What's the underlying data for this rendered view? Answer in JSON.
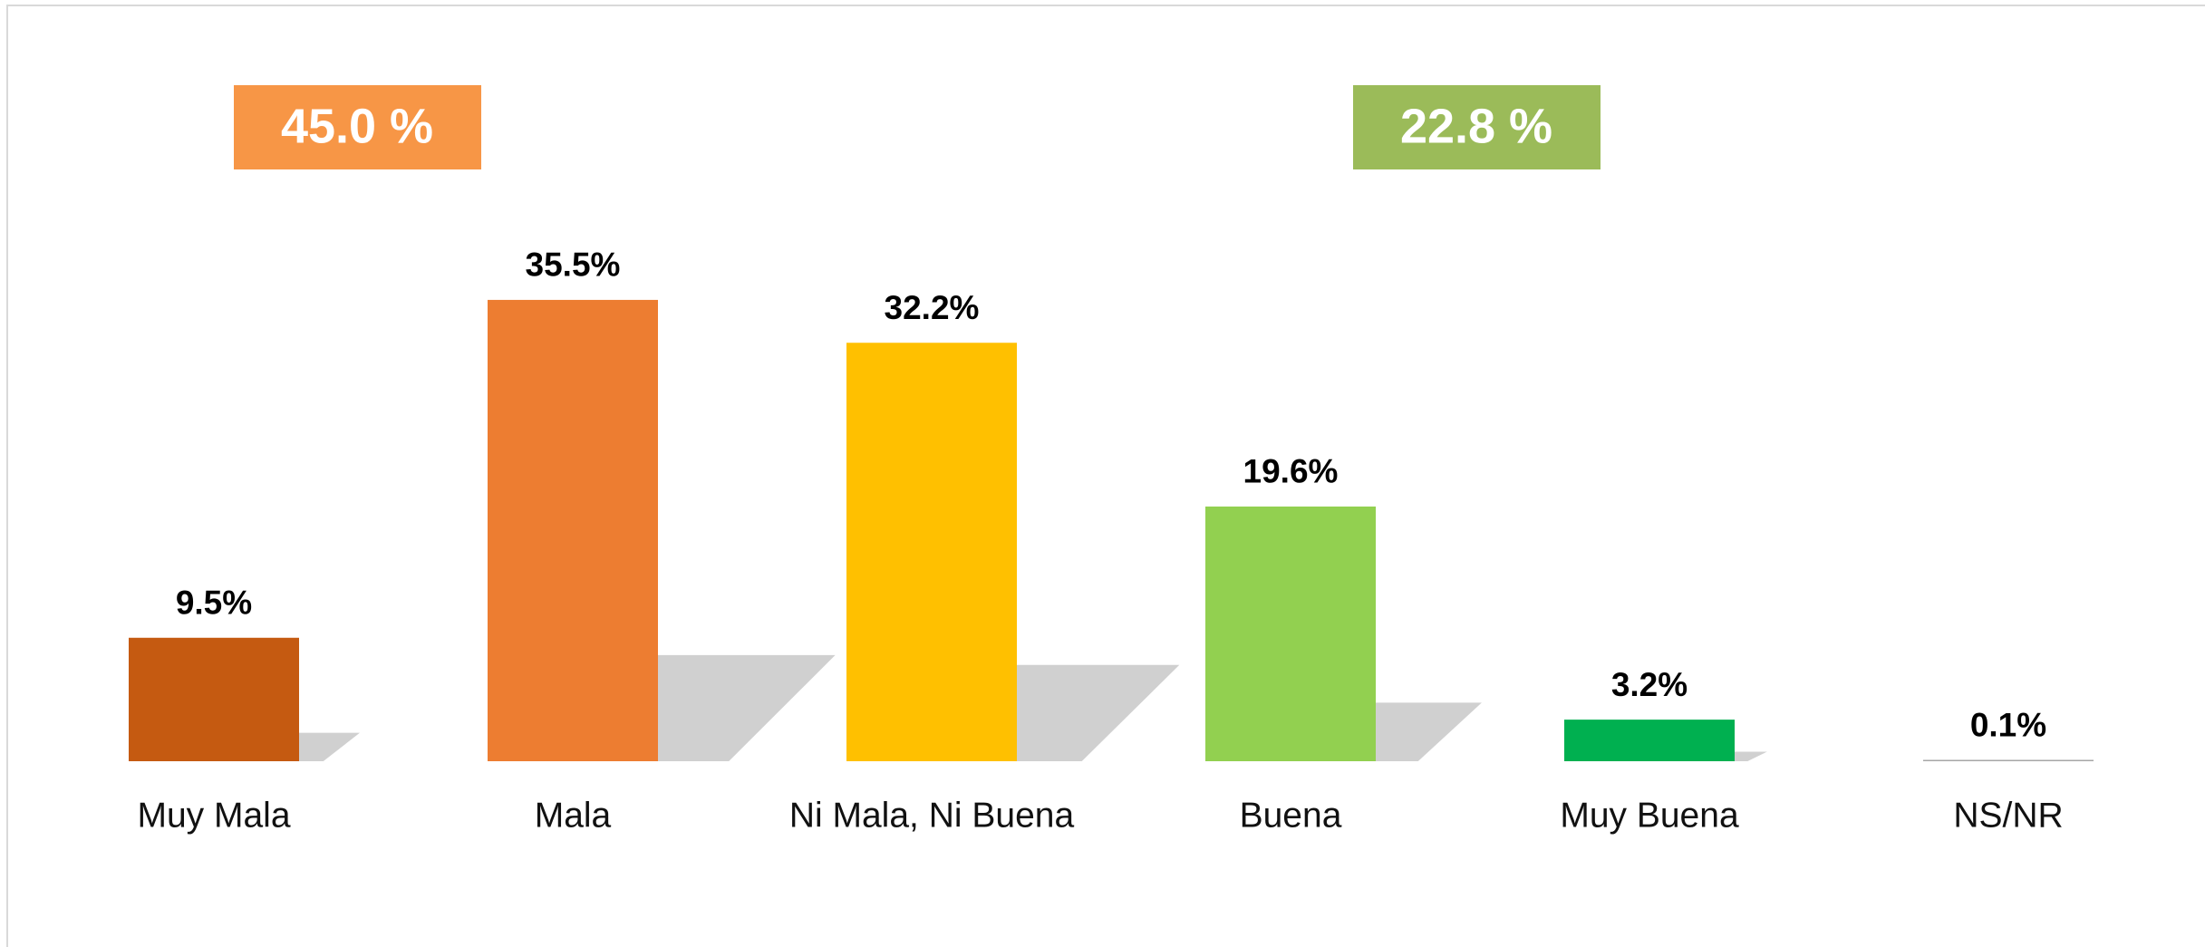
{
  "chart_data": {
    "type": "bar",
    "categories": [
      "Muy Mala",
      "Mala",
      "Ni Mala, Ni Buena",
      "Buena",
      "Muy Buena",
      "NS/NR"
    ],
    "values": [
      9.5,
      35.5,
      32.2,
      19.6,
      3.2,
      0.1
    ],
    "value_labels": [
      "9.5%",
      "35.5%",
      "32.2%",
      "19.6%",
      "3.2%",
      "0.1%"
    ],
    "colors": [
      "#c55a11",
      "#ed7d31",
      "#ffc000",
      "#92d050",
      "#00b050",
      "#a6a6a6"
    ],
    "annotations": [
      {
        "text": "45.0 %",
        "color": "#f79646"
      },
      {
        "text": "22.8 %",
        "color": "#9bbb59"
      }
    ]
  }
}
